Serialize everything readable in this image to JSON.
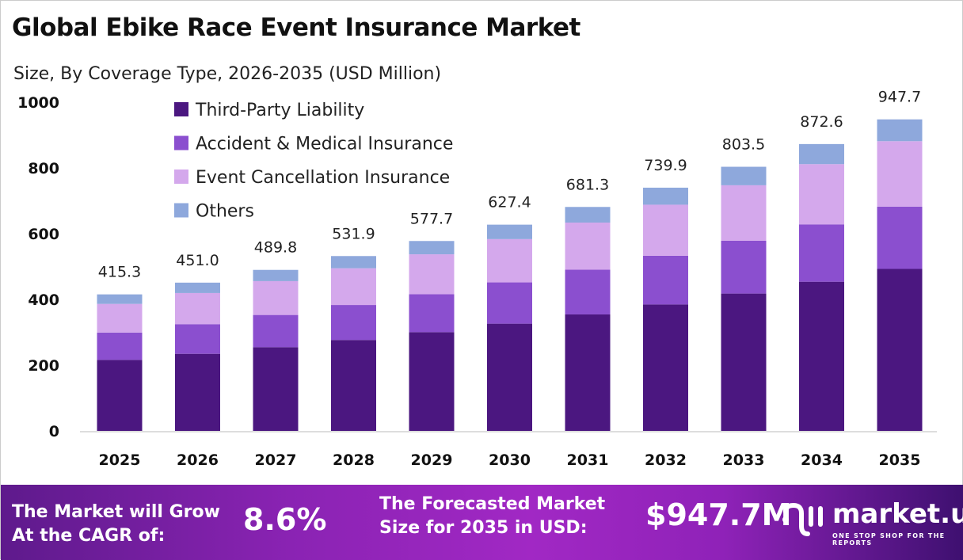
{
  "header": {
    "title": "Global Ebike Race Event Insurance Market",
    "subtitle": "Size, By Coverage Type, 2026-2035 (USD Million)"
  },
  "chart_data": {
    "type": "bar",
    "stacked": true,
    "title": "Global Ebike Race Event Insurance Market",
    "subtitle": "Size, By Coverage Type, 2026-2035 (USD Million)",
    "xlabel": "",
    "ylabel": "",
    "ylim": [
      0,
      1000
    ],
    "yticks": [
      "0",
      "200",
      "400",
      "600",
      "800",
      "1000"
    ],
    "legend_position": "top-left",
    "categories": [
      "2025",
      "2026",
      "2027",
      "2028",
      "2029",
      "2030",
      "2031",
      "2032",
      "2033",
      "2034",
      "2035"
    ],
    "totals": [
      "415.3",
      "451.0",
      "489.8",
      "531.9",
      "577.7",
      "627.4",
      "681.3",
      "739.9",
      "803.5",
      "872.6",
      "947.7"
    ],
    "series": [
      {
        "name": "Third-Party Liability",
        "color": "#4b1780",
        "values": [
          216.0,
          234.5,
          254.7,
          276.6,
          300.4,
          326.2,
          354.3,
          384.7,
          417.8,
          453.8,
          492.8
        ]
      },
      {
        "name": "Accident & Medical Insurance",
        "color": "#8b4fcf",
        "values": [
          83.1,
          90.2,
          98.0,
          106.4,
          115.5,
          125.5,
          136.3,
          148.0,
          160.7,
          174.5,
          189.5
        ]
      },
      {
        "name": "Event Cancellation Insurance",
        "color": "#d4a8ec",
        "values": [
          87.2,
          94.7,
          102.9,
          111.7,
          121.3,
          131.8,
          143.1,
          155.4,
          168.7,
          183.2,
          199.0
        ]
      },
      {
        "name": "Others",
        "color": "#8ea8dc",
        "values": [
          29.0,
          31.6,
          34.2,
          37.2,
          40.5,
          43.9,
          47.6,
          51.8,
          56.3,
          61.1,
          66.4
        ]
      }
    ]
  },
  "footer": {
    "cagr_label": [
      "The Market will Grow",
      "At the CAGR of:"
    ],
    "cagr_value": "8.6%",
    "forecast_label": [
      "The Forecasted Market",
      "Size for 2035 in USD:"
    ],
    "forecast_value": "$947.7M",
    "brand": "market.us",
    "brand_tagline": "ONE STOP SHOP FOR THE REPORTS"
  }
}
